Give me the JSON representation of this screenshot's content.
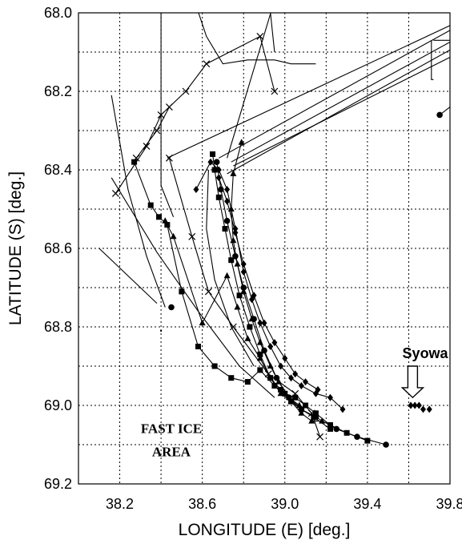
{
  "chart_data": {
    "type": "line",
    "title": "",
    "xlabel": "LONGITUDE (E)   [deg.]",
    "ylabel": "LATITUDE (S)   [deg.]",
    "xlim": [
      38.0,
      39.8
    ],
    "ylim": [
      68.0,
      69.2
    ],
    "y_inverted": true,
    "grid": true,
    "x_ticks": [
      38.0,
      38.2,
      38.4,
      38.6,
      38.8,
      39.0,
      39.2,
      39.4,
      39.6,
      39.8
    ],
    "y_ticks": [
      68.0,
      68.1,
      68.2,
      68.3,
      68.4,
      68.5,
      68.6,
      68.7,
      68.8,
      68.9,
      69.0,
      69.1,
      69.2
    ],
    "x_tick_labels": [
      {
        "value": 38.2,
        "text": "38.2"
      },
      {
        "value": 38.6,
        "text": "38.6"
      },
      {
        "value": 39.0,
        "text": "39.0"
      },
      {
        "value": 39.4,
        "text": "39.4"
      },
      {
        "value": 39.8,
        "text": "39.8"
      }
    ],
    "y_tick_labels": [
      {
        "value": 68.0,
        "text": "68.0"
      },
      {
        "value": 68.2,
        "text": "68.2"
      },
      {
        "value": 68.4,
        "text": "68.4"
      },
      {
        "value": 68.6,
        "text": "68.6"
      },
      {
        "value": 68.8,
        "text": "68.8"
      },
      {
        "value": 69.0,
        "text": "69.0"
      },
      {
        "value": 69.2,
        "text": "69.2"
      }
    ],
    "annotations": [
      {
        "text": "FAST ICE",
        "x": 38.45,
        "y": 69.07,
        "style": "serif"
      },
      {
        "text": "AREA",
        "x": 38.45,
        "y": 69.13,
        "style": "serif"
      },
      {
        "text": "Syowa",
        "x": 39.68,
        "y": 68.88,
        "style": "sans"
      }
    ],
    "station": {
      "name": "Syowa",
      "lon": 39.6,
      "lat": 69.0
    },
    "series": [
      {
        "marker": "square",
        "points": [
          [
            38.27,
            68.38
          ],
          [
            38.35,
            68.49
          ],
          [
            38.39,
            68.52
          ],
          [
            38.43,
            68.54
          ],
          [
            38.5,
            68.71
          ],
          [
            38.58,
            68.85
          ],
          [
            38.66,
            68.9
          ],
          [
            38.74,
            68.93
          ],
          [
            38.82,
            68.94
          ],
          [
            38.88,
            68.91
          ],
          [
            38.95,
            68.95
          ],
          [
            39.0,
            68.97
          ],
          [
            39.05,
            68.98
          ],
          [
            39.1,
            69.0
          ],
          [
            39.15,
            69.02
          ],
          [
            39.22,
            69.05
          ],
          [
            39.3,
            69.07
          ],
          [
            39.4,
            69.09
          ]
        ]
      },
      {
        "marker": "square",
        "points": [
          [
            38.65,
            68.36
          ],
          [
            38.66,
            68.4
          ],
          [
            38.68,
            68.47
          ],
          [
            38.71,
            68.55
          ],
          [
            38.74,
            68.63
          ],
          [
            38.78,
            68.72
          ],
          [
            38.83,
            68.8
          ],
          [
            38.88,
            68.87
          ],
          [
            38.93,
            68.93
          ],
          [
            38.98,
            68.96
          ],
          [
            39.03,
            68.99
          ],
          [
            39.08,
            69.01
          ],
          [
            39.14,
            69.03
          ],
          [
            39.22,
            69.06
          ]
        ]
      },
      {
        "marker": "triangle",
        "points": [
          [
            38.42,
            68.53
          ],
          [
            38.46,
            68.57
          ],
          [
            38.6,
            68.79
          ],
          [
            38.72,
            68.67
          ],
          [
            38.77,
            68.75
          ],
          [
            38.82,
            68.83
          ],
          [
            38.88,
            68.88
          ],
          [
            38.93,
            68.93
          ],
          [
            38.98,
            68.97
          ],
          [
            39.03,
            68.99
          ],
          [
            39.08,
            69.02
          ],
          [
            39.13,
            69.04
          ],
          [
            39.18,
            69.04
          ]
        ]
      },
      {
        "marker": "triangle",
        "points": [
          [
            38.79,
            68.33
          ],
          [
            38.75,
            68.41
          ],
          [
            38.74,
            68.5
          ],
          [
            38.75,
            68.58
          ],
          [
            38.77,
            68.64
          ],
          [
            38.8,
            68.71
          ],
          [
            38.84,
            68.78
          ],
          [
            38.88,
            68.84
          ],
          [
            38.93,
            68.9
          ],
          [
            38.97,
            68.94
          ],
          [
            39.02,
            68.98
          ],
          [
            39.07,
            69.0
          ]
        ]
      },
      {
        "marker": "diamond",
        "points": [
          [
            38.57,
            68.45
          ],
          [
            38.64,
            68.38
          ],
          [
            38.68,
            68.4
          ],
          [
            38.72,
            68.45
          ],
          [
            38.76,
            68.55
          ],
          [
            38.8,
            68.66
          ],
          [
            38.84,
            68.73
          ],
          [
            38.88,
            68.79
          ],
          [
            38.93,
            68.85
          ],
          [
            38.98,
            68.9
          ],
          [
            39.03,
            68.93
          ],
          [
            39.08,
            68.95
          ],
          [
            39.15,
            68.97
          ],
          [
            39.22,
            68.98
          ],
          [
            39.28,
            69.01
          ]
        ]
      },
      {
        "marker": "diamond",
        "points": [
          [
            38.68,
            68.42
          ],
          [
            38.72,
            68.48
          ],
          [
            38.76,
            68.56
          ],
          [
            38.8,
            68.64
          ],
          [
            38.85,
            68.72
          ],
          [
            38.9,
            68.79
          ],
          [
            38.95,
            68.84
          ],
          [
            39.0,
            68.88
          ],
          [
            39.05,
            68.92
          ],
          [
            39.1,
            68.94
          ],
          [
            39.16,
            68.96
          ]
        ]
      },
      {
        "marker": "circle",
        "points": [
          [
            38.67,
            68.38
          ],
          [
            38.69,
            68.45
          ],
          [
            38.72,
            68.53
          ],
          [
            38.76,
            68.62
          ],
          [
            38.8,
            68.7
          ],
          [
            38.85,
            68.78
          ],
          [
            38.9,
            68.86
          ],
          [
            38.96,
            68.93
          ],
          [
            39.02,
            68.98
          ],
          [
            39.08,
            69.01
          ],
          [
            39.15,
            69.03
          ],
          [
            39.25,
            69.06
          ],
          [
            39.35,
            69.08
          ],
          [
            39.49,
            69.1
          ]
        ]
      },
      {
        "marker": "cross",
        "points": [
          [
            38.18,
            68.46
          ],
          [
            38.33,
            68.34
          ],
          [
            38.4,
            68.26
          ],
          [
            38.52,
            68.2
          ],
          [
            38.62,
            68.13
          ],
          [
            38.88,
            68.06
          ],
          [
            38.95,
            68.2
          ]
        ]
      },
      {
        "marker": "cross",
        "points": [
          [
            38.28,
            68.37
          ],
          [
            38.38,
            68.3
          ],
          [
            38.44,
            68.24
          ]
        ]
      },
      {
        "marker": "cross",
        "points": [
          [
            38.44,
            68.37
          ],
          [
            38.55,
            68.57
          ],
          [
            38.63,
            68.71
          ],
          [
            38.75,
            68.8
          ],
          [
            38.92,
            68.92
          ],
          [
            39.05,
            68.97
          ],
          [
            39.13,
            69.02
          ],
          [
            39.17,
            69.08
          ]
        ]
      },
      {
        "marker": "none",
        "points": [
          [
            38.16,
            68.21
          ],
          [
            38.24,
            68.45
          ],
          [
            38.33,
            68.62
          ],
          [
            38.42,
            68.75
          ]
        ]
      },
      {
        "marker": "none",
        "points": [
          [
            38.1,
            68.6
          ],
          [
            38.38,
            68.74
          ]
        ]
      },
      {
        "marker": "none",
        "points": [
          [
            38.16,
            68.42
          ],
          [
            38.38,
            68.61
          ],
          [
            38.58,
            68.76
          ],
          [
            38.78,
            68.9
          ],
          [
            38.95,
            68.98
          ]
        ]
      },
      {
        "marker": "none",
        "points": [
          [
            38.4,
            67.98
          ],
          [
            38.4,
            68.44
          ],
          [
            38.46,
            68.52
          ]
        ]
      },
      {
        "marker": "none",
        "points": [
          [
            38.55,
            67.95
          ],
          [
            38.62,
            68.06
          ],
          [
            38.7,
            68.13
          ],
          [
            38.82,
            68.12
          ],
          [
            38.95,
            68.12
          ],
          [
            39.03,
            68.13
          ],
          [
            39.15,
            68.13
          ]
        ]
      },
      {
        "marker": "none",
        "points": [
          [
            38.92,
            67.95
          ],
          [
            38.95,
            68.1
          ]
        ]
      },
      {
        "marker": "none",
        "points": [
          [
            38.43,
            68.37
          ],
          [
            39.85,
            68.02
          ]
        ]
      },
      {
        "marker": "none",
        "points": [
          [
            38.68,
            68.37
          ],
          [
            39.85,
            68.03
          ]
        ]
      },
      {
        "marker": "none",
        "points": [
          [
            38.74,
            68.38
          ],
          [
            39.85,
            68.06
          ]
        ]
      },
      {
        "marker": "none",
        "points": [
          [
            38.75,
            68.39
          ],
          [
            39.85,
            68.1
          ]
        ]
      },
      {
        "marker": "none",
        "points": [
          [
            38.72,
            68.41
          ],
          [
            39.85,
            68.08
          ]
        ]
      },
      {
        "marker": "none",
        "points": [
          [
            38.72,
            68.37
          ],
          [
            38.96,
            67.95
          ]
        ]
      },
      {
        "marker": "none",
        "points": [
          [
            38.63,
            68.4
          ],
          [
            38.62,
            68.55
          ],
          [
            38.66,
            68.68
          ],
          [
            38.74,
            68.8
          ],
          [
            38.85,
            68.9
          ]
        ]
      },
      {
        "marker": "none",
        "points": [
          [
            39.72,
            68.07
          ],
          [
            39.81,
            68.07
          ]
        ]
      },
      {
        "marker": "none",
        "points": [
          [
            39.71,
            68.07
          ],
          [
            39.71,
            68.17
          ],
          [
            39.72,
            68.17
          ]
        ]
      },
      {
        "marker": "none",
        "points": [
          [
            39.75,
            68.26
          ],
          [
            39.85,
            68.22
          ]
        ]
      }
    ],
    "isolated_points": [
      {
        "marker": "circle",
        "x": 39.75,
        "y": 68.26
      },
      {
        "marker": "circle",
        "x": 38.45,
        "y": 68.75
      },
      {
        "marker": "dot",
        "x": 38.4,
        "y": 68.81
      }
    ],
    "syowa_cluster": {
      "marker": "diamond",
      "points": [
        [
          39.61,
          69.0
        ],
        [
          39.63,
          69.0
        ],
        [
          39.65,
          69.0
        ],
        [
          39.67,
          69.01
        ],
        [
          39.7,
          69.01
        ]
      ]
    }
  }
}
